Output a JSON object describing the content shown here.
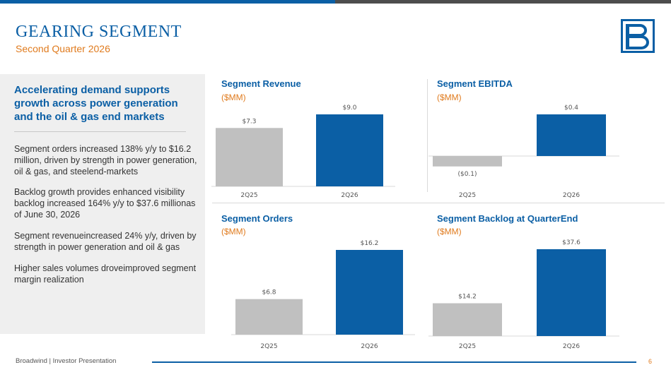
{
  "header": {
    "title": "GEARING SEGMENT",
    "subtitle": "Second Quarter 2026",
    "colors": {
      "brand_blue": "#0b5fa5",
      "accent_orange": "#e07b1e",
      "bar_gray": "#c0c0c0"
    }
  },
  "logo": {
    "icon": "broadwind-logo-icon"
  },
  "sidebar": {
    "heading": "Accelerating demand supports growth across power generation and the oil & gas end markets",
    "paragraphs": [
      "Segment orders increased 138% y/y to $16.2 million, driven by strength in power generation, oil & gas, and steelend-markets",
      "Backlog growth provides enhanced visibility backlog increased 164% y/y to $37.6 millionas of June 30, 2026",
      "Segment revenueincreased 24% y/y, driven by strength in power generation and oil & gas",
      "Higher sales volumes droveimproved segment margin realization"
    ]
  },
  "chart_data": [
    {
      "type": "bar",
      "title": "Segment Revenue",
      "unit": "($MM)",
      "categories": [
        "2Q25",
        "2Q26"
      ],
      "values": [
        7.3,
        9.0
      ],
      "labels": [
        "$7.3",
        "$9.0"
      ],
      "colors": [
        "#c0c0c0",
        "#0b5fa5"
      ]
    },
    {
      "type": "bar",
      "title": "Segment EBITDA",
      "unit": "($MM)",
      "categories": [
        "2Q25",
        "2Q26"
      ],
      "values": [
        -0.1,
        0.4
      ],
      "labels": [
        "($0.1)",
        "$0.4"
      ],
      "colors": [
        "#c0c0c0",
        "#0b5fa5"
      ]
    },
    {
      "type": "bar",
      "title": "Segment Orders",
      "unit": "($MM)",
      "categories": [
        "2Q25",
        "2Q26"
      ],
      "values": [
        6.8,
        16.2
      ],
      "labels": [
        "$6.8",
        "$16.2"
      ],
      "colors": [
        "#c0c0c0",
        "#0b5fa5"
      ]
    },
    {
      "type": "bar",
      "title": "Segment Backlog at QuarterEnd",
      "unit": "($MM)",
      "categories": [
        "2Q25",
        "2Q26"
      ],
      "values": [
        14.2,
        37.6
      ],
      "labels": [
        "$14.2",
        "$37.6"
      ],
      "colors": [
        "#c0c0c0",
        "#0b5fa5"
      ]
    }
  ],
  "footer": {
    "text": "Broadwind  | Investor Presentation",
    "page": "6"
  }
}
